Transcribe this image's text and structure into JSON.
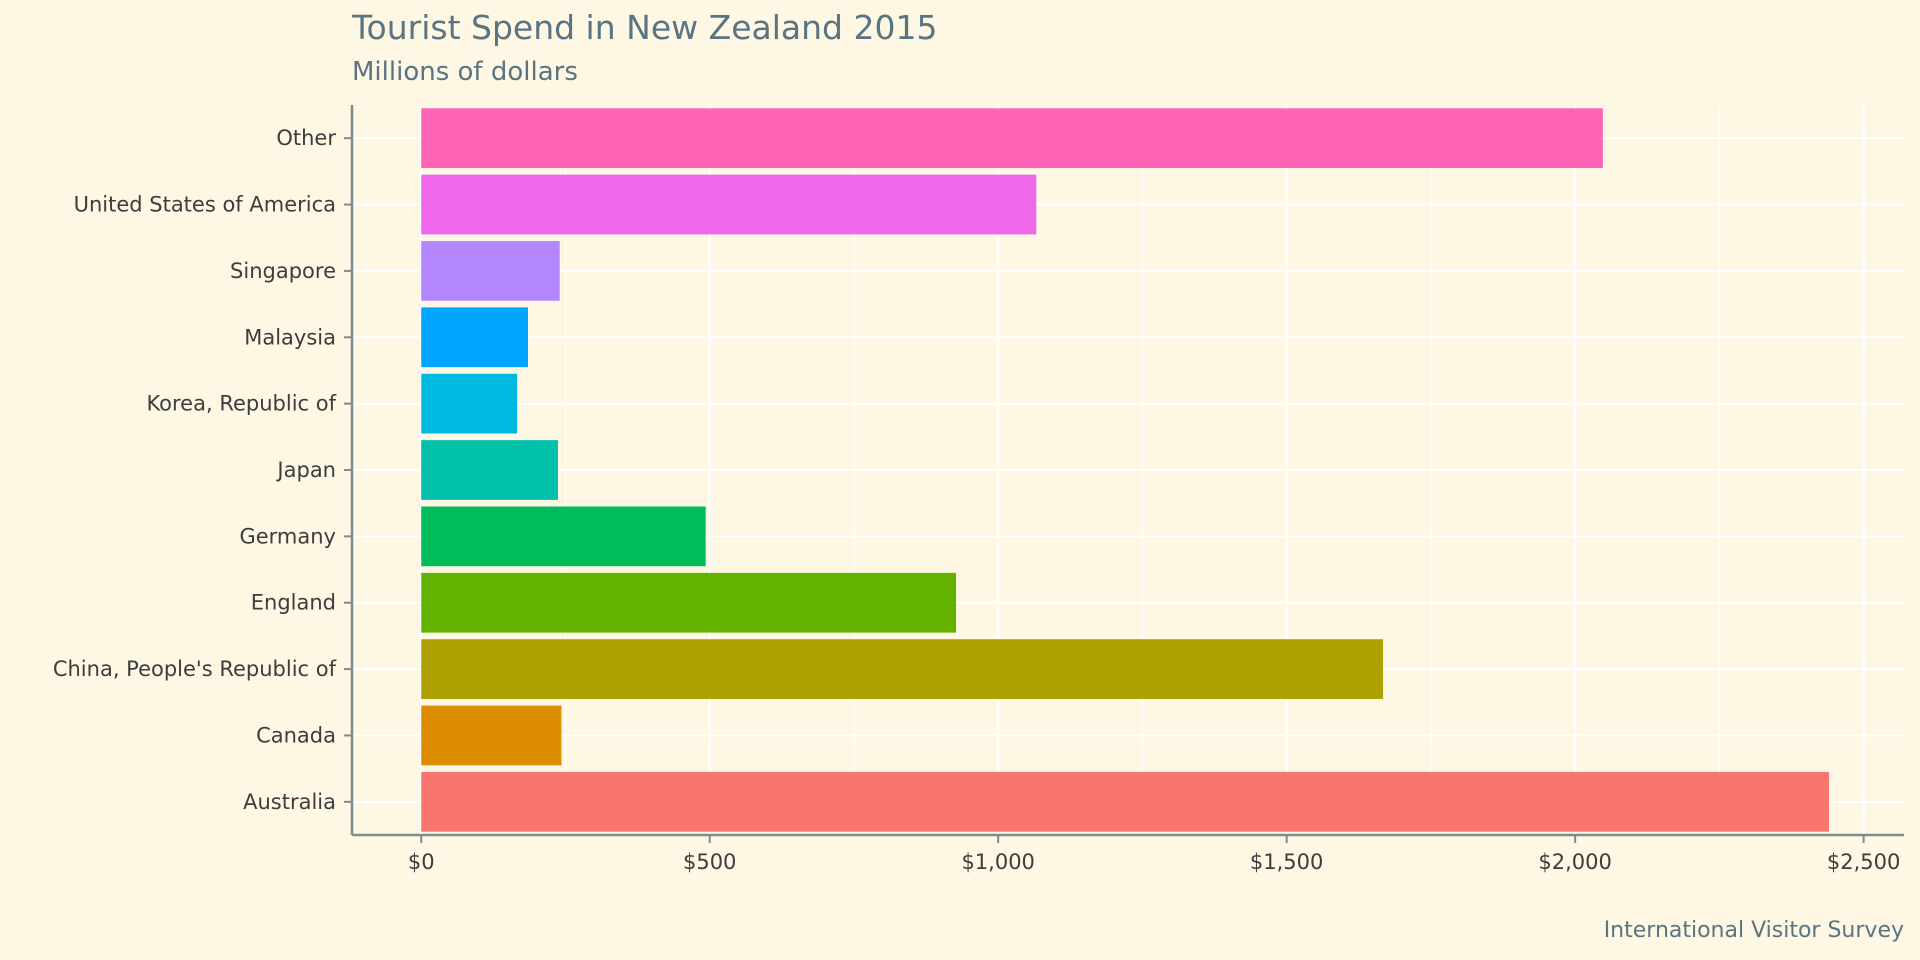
{
  "chart_data": {
    "type": "bar",
    "orientation": "horizontal",
    "title": "Tourist Spend in New Zealand 2015",
    "subtitle": "Millions of dollars",
    "caption": "International Visitor Survey",
    "xlabel": "",
    "ylabel": "",
    "categories": [
      "Australia",
      "Canada",
      "China, People's Republic of",
      "England",
      "Germany",
      "Japan",
      "Korea, Republic of",
      "Malaysia",
      "Singapore",
      "United States of America",
      "Other"
    ],
    "values": [
      2440,
      243,
      1667,
      927,
      493,
      237,
      166,
      185,
      240,
      1066,
      2048
    ],
    "colors": [
      "#f8766d",
      "#de8c00",
      "#aca100",
      "#64b200",
      "#00bd5c",
      "#00c0a9",
      "#00b9e0",
      "#00a5ff",
      "#b385ff",
      "#ef67eb",
      "#ff63b6"
    ],
    "xlim": [
      -120,
      2570
    ],
    "x_ticks": [
      0,
      500,
      1000,
      1500,
      2000,
      2500
    ],
    "x_tick_labels": [
      "$0",
      "$500",
      "$1,000",
      "$1,500",
      "$2,000",
      "$2,500"
    ],
    "grid": true,
    "legend": "none"
  }
}
